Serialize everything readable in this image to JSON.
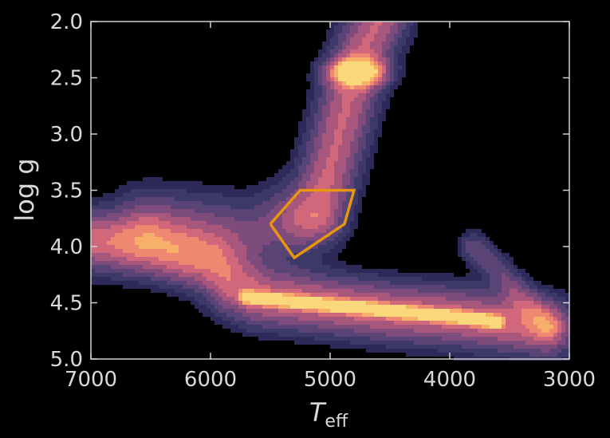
{
  "chart_data": {
    "type": "heatmap",
    "title": "",
    "xlabel": {
      "main": "T",
      "subscript": "eff"
    },
    "ylabel": "log g",
    "xlim": [
      7000,
      3000
    ],
    "ylim": [
      5.0,
      2.0
    ],
    "x_inverted": true,
    "y_inverted": true,
    "x_ticks": [
      7000,
      6000,
      5000,
      4000,
      3000
    ],
    "y_ticks": [
      2.0,
      2.5,
      3.0,
      3.5,
      4.0,
      4.5,
      5.0
    ],
    "x_tick_labels": [
      "7000",
      "6000",
      "5000",
      "4000",
      "3000"
    ],
    "y_tick_labels": [
      "2.0",
      "2.5",
      "3.0",
      "3.5",
      "4.0",
      "4.5",
      "5.0"
    ],
    "colormap": [
      "#2d2a5a",
      "#3c3868",
      "#5a4476",
      "#7e4c7c",
      "#a8577c",
      "#d0677a",
      "#ef8870",
      "#f7b06a",
      "#fbd77c"
    ],
    "background_color": "#000000",
    "density_regions": [
      {
        "name": "main sequence",
        "shape": "polyline",
        "points": [
          [
            7000,
            3.95
          ],
          [
            6500,
            4.0
          ],
          [
            6000,
            4.15
          ],
          [
            5800,
            4.35
          ],
          [
            5600,
            4.45
          ],
          [
            5000,
            4.52
          ],
          [
            4500,
            4.58
          ],
          [
            4000,
            4.62
          ],
          [
            3500,
            4.68
          ],
          [
            3200,
            4.72
          ]
        ],
        "width_logg": 0.35,
        "peak": 0.55
      },
      {
        "name": "main sequence ridge",
        "shape": "polyline",
        "points": [
          [
            5700,
            4.45
          ],
          [
            5000,
            4.52
          ],
          [
            4500,
            4.57
          ],
          [
            4000,
            4.62
          ],
          [
            3600,
            4.67
          ]
        ],
        "width_logg": 0.07,
        "peak": 0.9
      },
      {
        "name": "subgiant branch",
        "shape": "polyline",
        "points": [
          [
            6500,
            3.8
          ],
          [
            6000,
            3.85
          ],
          [
            5700,
            3.9
          ],
          [
            5400,
            3.8
          ]
        ],
        "width_logg": 0.45,
        "peak": 0.3
      },
      {
        "name": "giant branch",
        "shape": "polyline",
        "points": [
          [
            5100,
            3.7
          ],
          [
            5000,
            3.3
          ],
          [
            4900,
            2.9
          ],
          [
            4800,
            2.5
          ],
          [
            4700,
            2.2
          ],
          [
            4600,
            2.0
          ]
        ],
        "width_logg": 0.35,
        "peak": 0.5
      },
      {
        "name": "red clump",
        "shape": "blob",
        "center": [
          4780,
          2.45
        ],
        "radius_teff": 150,
        "radius_logg": 0.08,
        "peak": 1.0
      },
      {
        "name": "M dwarf extension",
        "shape": "polyline",
        "points": [
          [
            3800,
            4.0
          ],
          [
            3600,
            4.2
          ],
          [
            3400,
            4.45
          ],
          [
            3200,
            4.7
          ]
        ],
        "width_logg": 0.18,
        "peak": 0.25
      }
    ],
    "selection_polygon": {
      "color": "#e8960f",
      "vertices": [
        [
          5500,
          3.8
        ],
        [
          5250,
          3.5
        ],
        [
          4800,
          3.5
        ],
        [
          4880,
          3.8
        ],
        [
          5300,
          4.1
        ],
        [
          5500,
          3.8
        ]
      ]
    }
  }
}
